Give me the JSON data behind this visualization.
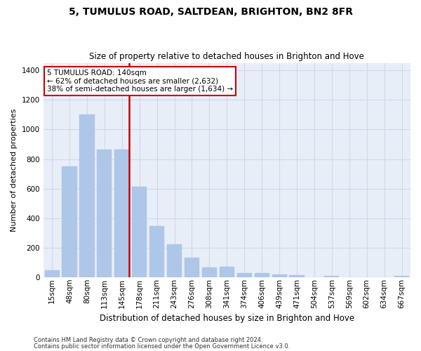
{
  "title1": "5, TUMULUS ROAD, SALTDEAN, BRIGHTON, BN2 8FR",
  "title2": "Size of property relative to detached houses in Brighton and Hove",
  "xlabel": "Distribution of detached houses by size in Brighton and Hove",
  "ylabel": "Number of detached properties",
  "footnote1": "Contains HM Land Registry data © Crown copyright and database right 2024.",
  "footnote2": "Contains public sector information licensed under the Open Government Licence v3.0.",
  "bar_labels": [
    "15sqm",
    "48sqm",
    "80sqm",
    "113sqm",
    "145sqm",
    "178sqm",
    "211sqm",
    "243sqm",
    "276sqm",
    "308sqm",
    "341sqm",
    "374sqm",
    "406sqm",
    "439sqm",
    "471sqm",
    "504sqm",
    "537sqm",
    "569sqm",
    "602sqm",
    "634sqm",
    "667sqm"
  ],
  "bar_values": [
    50,
    750,
    1100,
    865,
    865,
    615,
    345,
    225,
    135,
    65,
    70,
    30,
    30,
    20,
    15,
    0,
    12,
    0,
    0,
    0,
    12
  ],
  "bar_color": "#aec6e8",
  "bar_edge_color": "#aec6e8",
  "grid_color": "#d0d8e8",
  "background_color": "#e8eef8",
  "vline_color": "#cc0000",
  "vline_index": 4,
  "annotation_text": "5 TUMULUS ROAD: 140sqm\n← 62% of detached houses are smaller (2,632)\n38% of semi-detached houses are larger (1,634) →",
  "annotation_box_color": "#cc0000",
  "ylim": [
    0,
    1450
  ],
  "yticks": [
    0,
    200,
    400,
    600,
    800,
    1000,
    1200,
    1400
  ],
  "title1_fontsize": 10,
  "title2_fontsize": 8.5,
  "xlabel_fontsize": 8.5,
  "ylabel_fontsize": 8,
  "tick_fontsize": 7.5,
  "footnote_fontsize": 6.0
}
